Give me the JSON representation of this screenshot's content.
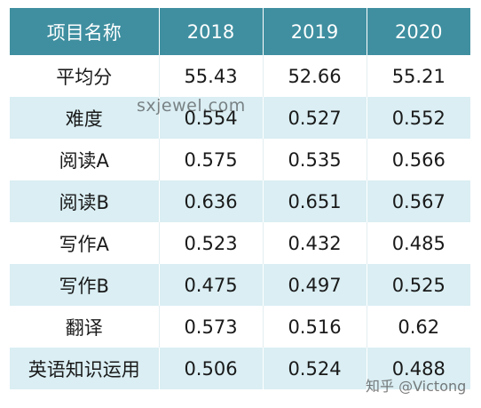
{
  "table": {
    "headers": [
      "项目名称",
      "2018",
      "2019",
      "2020"
    ],
    "rows": [
      {
        "name": "平均分",
        "values": [
          "55.43",
          "52.66",
          "55.21"
        ]
      },
      {
        "name": "难度",
        "values": [
          "0.554",
          "0.527",
          "0.552"
        ]
      },
      {
        "name": "阅读A",
        "values": [
          "0.575",
          "0.535",
          "0.566"
        ]
      },
      {
        "name": "阅读B",
        "values": [
          "0.636",
          "0.651",
          "0.567"
        ]
      },
      {
        "name": "写作A",
        "values": [
          "0.523",
          "0.432",
          "0.485"
        ]
      },
      {
        "name": "写作B",
        "values": [
          "0.475",
          "0.497",
          "0.525"
        ]
      },
      {
        "name": "翻译",
        "values": [
          "0.573",
          "0.516",
          "0.62"
        ]
      },
      {
        "name": "英语知识运用",
        "values": [
          "0.506",
          "0.524",
          "0.488"
        ]
      }
    ]
  },
  "colors": {
    "header_bg": "#3f8fa0",
    "header_text": "#ffffff",
    "row_alt_bg": "#daeef3",
    "row_bg": "#ffffff"
  },
  "watermarks": {
    "center": "sxjewel.com",
    "corner": "知乎 @Victong"
  }
}
